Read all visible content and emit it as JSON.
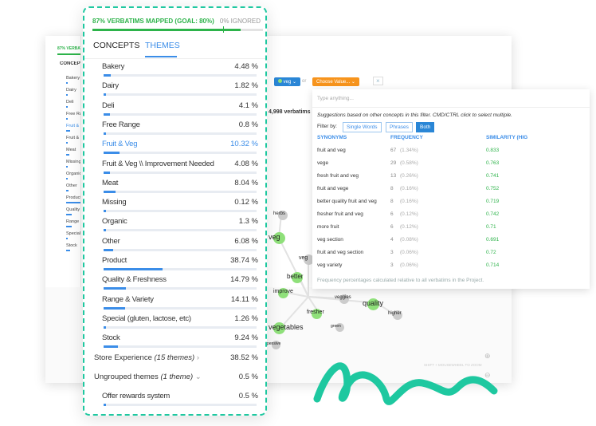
{
  "background": {
    "mapped": "87% VERBATI",
    "concepts": "CONCEPT",
    "filter_value": "veg",
    "or": "or",
    "choose_value": "Choose Value...",
    "clear": "×",
    "verbatims": "4,998 verbatims",
    "zoom_hint": "SHIFT + MOUSEWHEEL TO ZOOM",
    "graph_nodes": [
      "herbs",
      "veg",
      "veg",
      "better",
      "improve",
      "veggies",
      "quality",
      "higher",
      "fresher",
      "green",
      "vegetables",
      "pensive"
    ]
  },
  "panel": {
    "mapped_label": "87% VERBATIMS MAPPED (GOAL: 80%)",
    "mapped_pct": 87,
    "goal_pct": 80,
    "ignored_label": "0% IGNORED",
    "tabs": [
      {
        "label": "CONCEPTS"
      },
      {
        "label": "THEMES"
      }
    ],
    "active_tab": "THEMES",
    "themes": [
      {
        "label": "Bakery",
        "value": "4.48 %",
        "pct": 4.48
      },
      {
        "label": "Dairy",
        "value": "1.82 %",
        "pct": 1.82
      },
      {
        "label": "Deli",
        "value": "4.1 %",
        "pct": 4.1
      },
      {
        "label": "Free Range",
        "value": "0.8 %",
        "pct": 0.8
      },
      {
        "label": "Fruit & Veg",
        "value": "10.32 %",
        "pct": 10.32,
        "active": true
      },
      {
        "label": "Fruit & Veg \\\\ Improvement Needed",
        "value": "4.08 %",
        "pct": 4.08
      },
      {
        "label": "Meat",
        "value": "8.04 %",
        "pct": 8.04
      },
      {
        "label": "Missing",
        "value": "0.12 %",
        "pct": 0.12
      },
      {
        "label": "Organic",
        "value": "1.3 %",
        "pct": 1.3
      },
      {
        "label": "Other",
        "value": "6.08 %",
        "pct": 6.08
      },
      {
        "label": "Product",
        "value": "38.74 %",
        "pct": 38.74
      },
      {
        "label": "Quality & Freshness",
        "value": "14.79 %",
        "pct": 14.79
      },
      {
        "label": "Range & Variety",
        "value": "14.11 %",
        "pct": 14.11
      },
      {
        "label": "Special (gluten, lactose, etc)",
        "value": "1.26 %",
        "pct": 1.26
      },
      {
        "label": "Stock",
        "value": "9.24 %",
        "pct": 9.24
      }
    ],
    "groups": [
      {
        "label": "Store Experience",
        "note": "(15 themes)",
        "chev": "›",
        "value": "38.52 %"
      },
      {
        "label": "Ungrouped themes",
        "note": "(1 theme)",
        "chev": "⌄",
        "value": "0.5 %"
      }
    ],
    "offer": {
      "label": "Offer rewards system",
      "value": "0.5 %",
      "pct": 0.5
    }
  },
  "popup": {
    "placeholder": "Type anything...",
    "suggestion": "Suggestions based on other concepts in this filter. CMD/CTRL click to select multiple.",
    "filter_by": "Filter by:",
    "filters": [
      "Single Words",
      "Phrases",
      "Both"
    ],
    "active_filter": "Both",
    "columns": [
      "SYNONYMS",
      "FREQUENCY",
      "SIMILARITY (HIG"
    ],
    "rows": [
      [
        "fruit and veg",
        "67",
        "(1.34%)",
        "0.833"
      ],
      [
        "vege",
        "29",
        "(0.58%)",
        "0.763"
      ],
      [
        "fresh fruit and veg",
        "13",
        "(0.26%)",
        "0.741"
      ],
      [
        "fruit and vege",
        "8",
        "(0.16%)",
        "0.752"
      ],
      [
        "better quality fruit and veg",
        "8",
        "(0.16%)",
        "0.719"
      ],
      [
        "fresher fruit and veg",
        "6",
        "(0.12%)",
        "0.742"
      ],
      [
        "more fruit",
        "6",
        "(0.12%)",
        "0.71"
      ],
      [
        "veg section",
        "4",
        "(0.08%)",
        "0.691"
      ],
      [
        "fruit and veg section",
        "3",
        "(0.06%)",
        "0.72"
      ],
      [
        "veg variety",
        "3",
        "(0.06%)",
        "0.714"
      ]
    ],
    "footer": "Frequency percentages calculated relative to all verbatims in the Project."
  },
  "colors": {
    "accent": "#3b8de8",
    "green": "#2db34a",
    "teal": "#1ec8a0",
    "orange": "#f7941d"
  }
}
